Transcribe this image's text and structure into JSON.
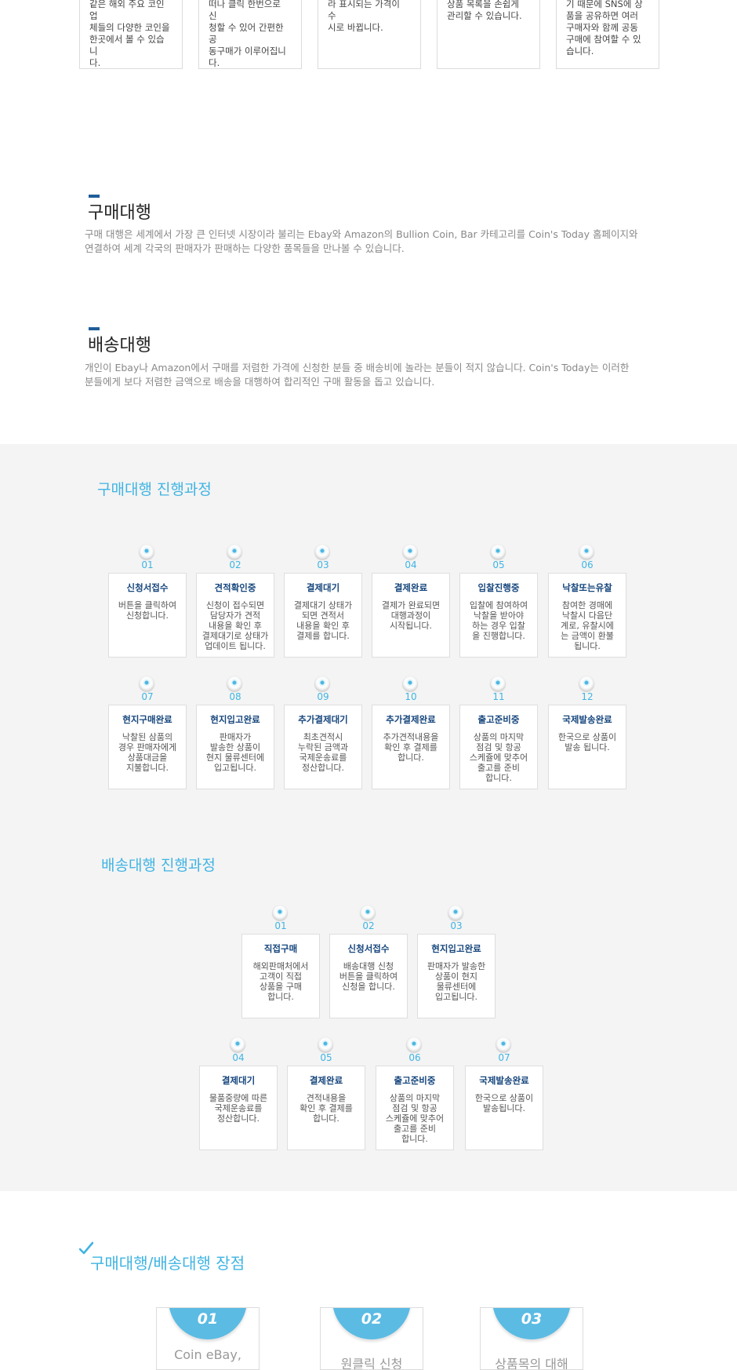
{
  "top_cards": [
    {
      "lines": [
        "같은 해외 주요 코인업",
        "체들의 다양한 코인을",
        "한곳에서 볼 수 있습니",
        "다."
      ]
    },
    {
      "lines": [
        "떠나 클릭 한번으로 신",
        "청할 수 있어 간편한 공",
        "동구매가 이루어집니",
        "다."
      ]
    },
    {
      "lines": [
        "라 표시되는 가격이 수",
        "시로 바뀝니다."
      ]
    },
    {
      "lines": [
        "상품 목록을 손쉽게",
        "관리할 수 있습니다."
      ]
    },
    {
      "lines": [
        "기 때문에 SNS에 상",
        "품을 공유하면 여러",
        "구매자와 함께 공동",
        "구매에 참여할 수 있",
        "습니다."
      ]
    }
  ],
  "purchase_agency": {
    "title": "구매대행",
    "desc_lines": [
      "구매 대행은 세계에서 가장 큰 인터넷 시장이라 불리는 Ebay와 Amazon의 Bullion Coin, Bar 카테고리를 Coin's Today 홈페이지와",
      "연결하여 세계 각국의 판매자가 판매하는 다양한 품목들을 만나볼 수 있습니다."
    ]
  },
  "shipping_agency": {
    "title": "배송대행",
    "desc_lines": [
      "개인이 Ebay나 Amazon에서 구매를 저렴한 가격에 신청한 분들 중 배송비에 놀라는 분들이 적지 않습니다. Coin's Today는 이러한",
      "분들에게 보다 저렴한 금액으로 배송을 대행하여 합리적인 구매 활동을 돕고 있습니다."
    ]
  },
  "purchase_process": {
    "title": "구매대행 진행과정",
    "steps": [
      {
        "num": "01",
        "title": "신청서접수",
        "lines": [
          "버튼을 클릭하여",
          "신청합니다."
        ]
      },
      {
        "num": "02",
        "title": "견적확인중",
        "lines": [
          "신청이 접수되면",
          "담당자가 견적",
          "내용을 확인 후",
          "결제대기로 상태가",
          "업데이트 됩니다."
        ]
      },
      {
        "num": "03",
        "title": "결제대기",
        "lines": [
          "결제대기 상태가",
          "되면 견적서",
          "내용을 확인 후",
          "결제를 합니다."
        ]
      },
      {
        "num": "04",
        "title": "결제완료",
        "lines": [
          "결제가 완료되면",
          "대행과정이",
          "시작됩니다."
        ]
      },
      {
        "num": "05",
        "title": "입찰진행중",
        "lines": [
          "입찰에 참여하여",
          "낙찰을 받아야",
          "하는 경우 입찰",
          "을 진행합니다."
        ]
      },
      {
        "num": "06",
        "title": "낙찰또는유찰",
        "lines": [
          "참여한 경매에",
          "낙찰시 다음단",
          "계로, 유찰시에",
          "는 금액이 환불",
          "됩니다."
        ]
      },
      {
        "num": "07",
        "title": "현지구매완료",
        "lines": [
          "낙찰된 삼품의",
          "경우 판매자에게",
          "상품대금을",
          "지불합니다."
        ]
      },
      {
        "num": "08",
        "title": "현지입고완료",
        "lines": [
          "판매자가",
          "발송한 상품이",
          "현지 물류센터에",
          "입고됩니다."
        ]
      },
      {
        "num": "09",
        "title": "추가결제대기",
        "lines": [
          "최초견적시",
          "누락된 금액과",
          "국제운송료를",
          "정산합니다."
        ]
      },
      {
        "num": "10",
        "title": "추가결제완료",
        "lines": [
          "추가견적내용을",
          "확인 후 결제를",
          "합니다."
        ]
      },
      {
        "num": "11",
        "title": "출고준비중",
        "lines": [
          "상품의 마지막",
          "점검 및 항공",
          "스케쥴에 맞추어",
          "출고를 준비",
          "합니다."
        ]
      },
      {
        "num": "12",
        "title": "국제발송완료",
        "lines": [
          "한국으로 상품이",
          "발송 됩니다."
        ]
      }
    ]
  },
  "shipping_process": {
    "title": "배송대행 진행과정",
    "steps": [
      {
        "num": "01",
        "title": "직접구매",
        "lines": [
          "해외판매처에서",
          "고객이 직접",
          "상품을 구매",
          "합니다."
        ]
      },
      {
        "num": "02",
        "title": "신청서접수",
        "lines": [
          "배송대행 신청",
          "버튼을 클릭하여",
          "신청을 합니다."
        ]
      },
      {
        "num": "03",
        "title": "현지입고완료",
        "lines": [
          "판매자가 발송한",
          "상품이 현지",
          "물류센터에",
          "입고됩니다."
        ]
      },
      {
        "num": "04",
        "title": "결제대기",
        "lines": [
          "물품중량에 따른",
          "국제운송료를",
          "정산합니다."
        ]
      },
      {
        "num": "05",
        "title": "결제완료",
        "lines": [
          "견적내용을",
          "확인 후 결제를",
          "합니다."
        ]
      },
      {
        "num": "06",
        "title": "출고준비중",
        "lines": [
          "상품의 마지막",
          "점검 및 항공",
          "스케쥴에 맞추어",
          "출고를 준비",
          "합니다."
        ]
      },
      {
        "num": "07",
        "title": "국제발송완료",
        "lines": [
          "한국으로 상품이",
          "발송됩니다."
        ]
      }
    ]
  },
  "advantages": {
    "title": "구매대행/배송대행 장점",
    "cards": [
      {
        "num": "01",
        "text": "Coin eBay,"
      },
      {
        "num": "02",
        "text": "원클릭 신청"
      },
      {
        "num": "03",
        "text": "상품목의 대해"
      }
    ]
  },
  "colors": {
    "accent": "#3fb4e3",
    "step_title": "#16467d",
    "section_bar": "#1f5e99",
    "gray_bg": "#f4f4f4"
  }
}
